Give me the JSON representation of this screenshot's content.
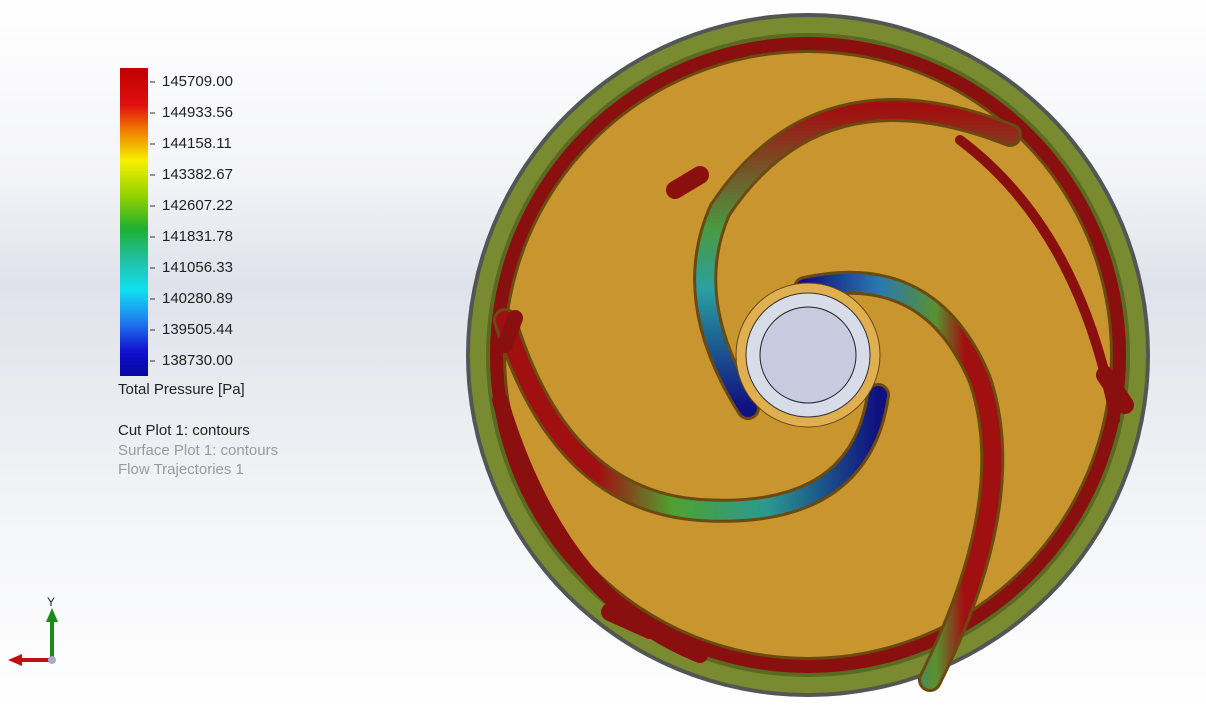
{
  "legend": {
    "ticks": [
      "145709.00",
      "144933.56",
      "144158.11",
      "143382.67",
      "142607.22",
      "141831.78",
      "141056.33",
      "140280.89",
      "139505.44",
      "138730.00"
    ],
    "title": "Total Pressure [Pa]"
  },
  "plots": [
    "Cut Plot 1: contours",
    "Surface Plot 1: contours",
    "Flow Trajectories 1"
  ],
  "triad": {
    "y_label": "Y"
  }
}
